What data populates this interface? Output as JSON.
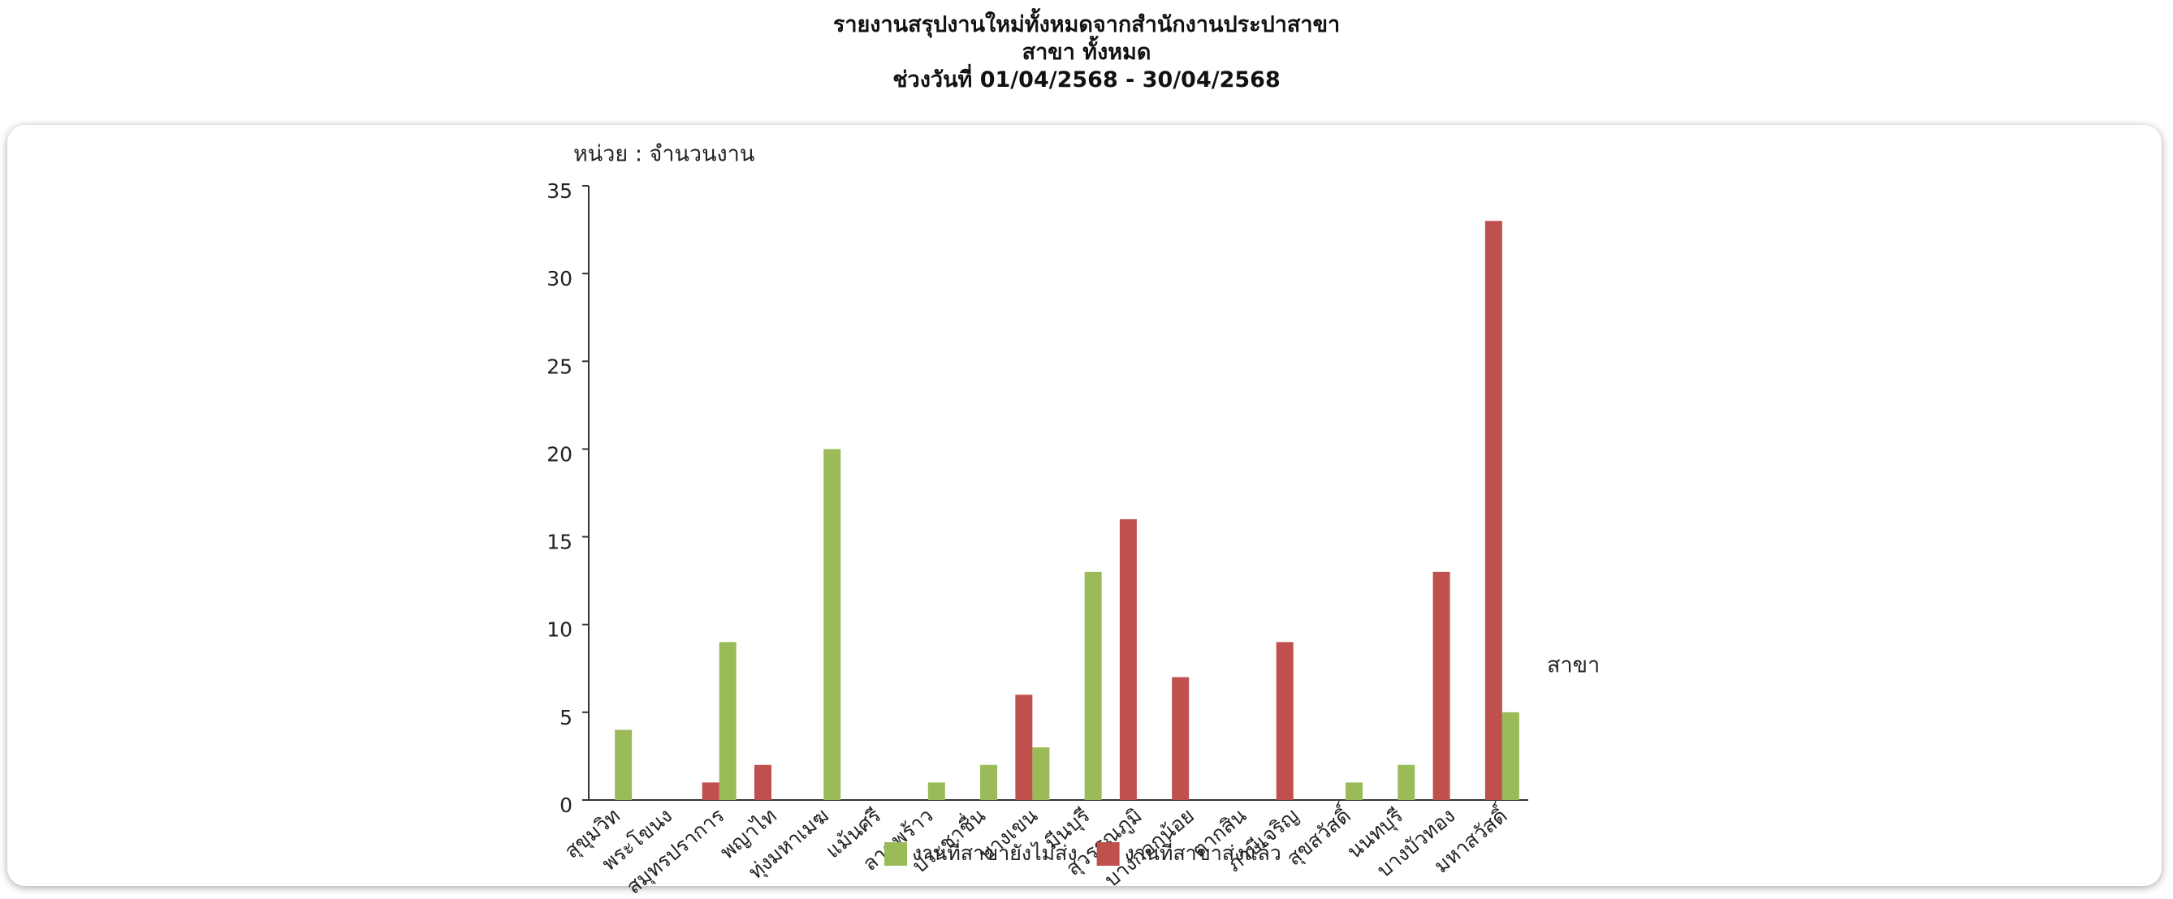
{
  "chart_data": {
    "type": "bar",
    "title": [
      "รายงานสรุปงานใหม่ทั้งหมดจากสำนักงานประปาสาขา",
      "สาขา ทั้งหมด",
      "ช่วงวันที่ 01/04/2568 - 30/04/2568"
    ],
    "y_label": "หน่วย : จำนวนงาน",
    "x_label": "สาขา",
    "categories": [
      "สุขุมวิท",
      "พระโขนง",
      "สมุทรปราการ",
      "พญาไท",
      "ทุ่งมหาเมฆ",
      "แม้นศรี",
      "ลาดพร้าว",
      "ประชาชื่น",
      "บางเขน",
      "มีนบุรี",
      "สุวรรณภูมิ",
      "บางกอกน้อย",
      "ตากสิน",
      "ภาษีเจริญ",
      "สุขสวัสดิ์",
      "นนทบุรี",
      "บางบัวทอง",
      "มหาสวัสดิ์"
    ],
    "series": [
      {
        "name": "งานที่สาขายังไม่ส่ง",
        "color": "#9bbb59",
        "values": [
          4,
          0,
          9,
          0,
          20,
          0,
          1,
          2,
          3,
          13,
          0,
          0,
          0,
          0,
          1,
          2,
          0,
          5
        ]
      },
      {
        "name": "งานที่สาขาส่งแล้ว",
        "color": "#c0504d",
        "values": [
          0,
          0,
          1,
          2,
          0,
          0,
          0,
          0,
          6,
          0,
          16,
          7,
          0,
          9,
          0,
          0,
          13,
          33
        ]
      }
    ],
    "ylim": [
      0,
      35
    ],
    "yticks": [
      0,
      5,
      10,
      15,
      20,
      25,
      30,
      35
    ],
    "grid": false,
    "legend": "bottom"
  }
}
